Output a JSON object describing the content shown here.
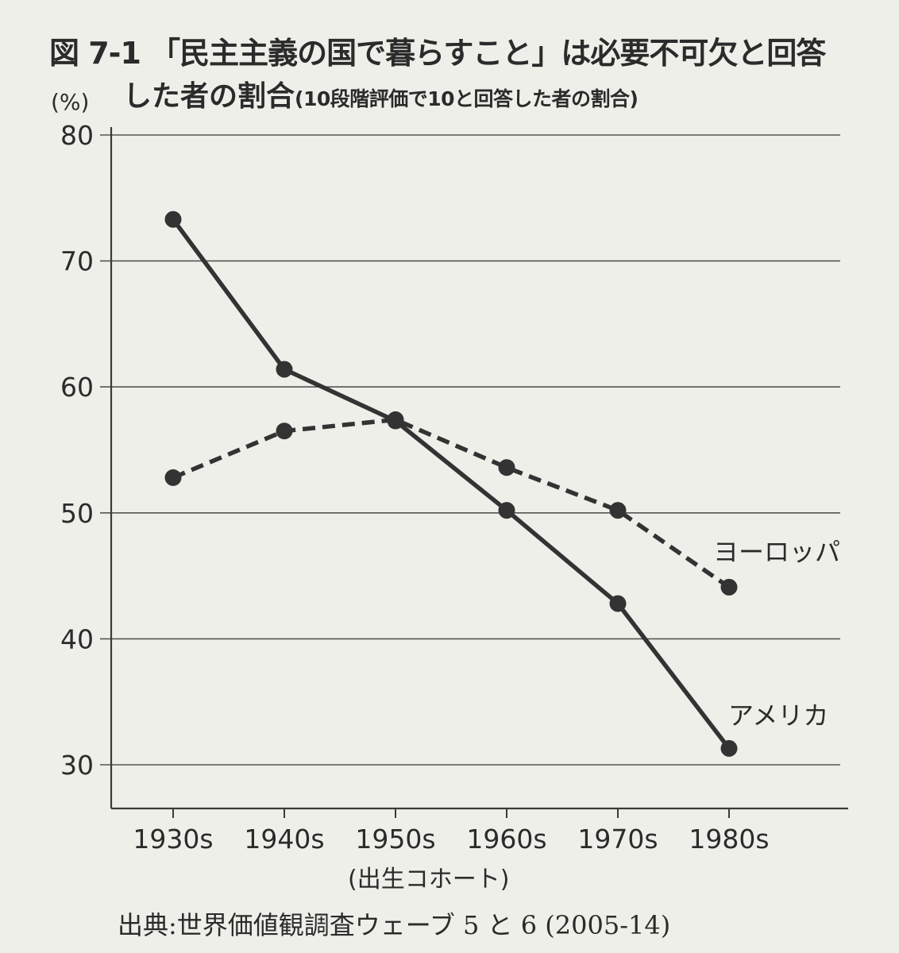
{
  "figure": {
    "title_line1": "図 7-1 「民主主義の国で暮らすこと」は必要不可欠と回答",
    "title_line2_main": "した者の割合",
    "title_line2_sub": "(10段階評価で10と回答した者の割合)",
    "source": "出典:世界価値観調査ウェーブ 5 と 6 (2005-14)"
  },
  "chart_data": {
    "type": "line",
    "title": "図 7-1 「民主主義の国で暮らすこと」は必要不可欠と回答した者の割合",
    "ylabel": "(%)",
    "xlabel": "(出生コホート)",
    "categories": [
      "1930s",
      "1940s",
      "1950s",
      "1960s",
      "1970s",
      "1980s"
    ],
    "ylim": [
      30,
      80
    ],
    "yticks": [
      30,
      40,
      50,
      60,
      70,
      80
    ],
    "grid": "horizontal",
    "series": [
      {
        "name": "アメリカ",
        "style": "solid",
        "values": [
          73.3,
          61.4,
          57.3,
          50.2,
          42.8,
          31.3
        ]
      },
      {
        "name": "ヨーロッパ",
        "style": "dashed",
        "values": [
          52.8,
          56.5,
          57.4,
          53.6,
          50.2,
          44.1
        ]
      }
    ],
    "colors": {
      "line": "#333333",
      "grid": "#555555",
      "background": "#efefe9"
    }
  }
}
